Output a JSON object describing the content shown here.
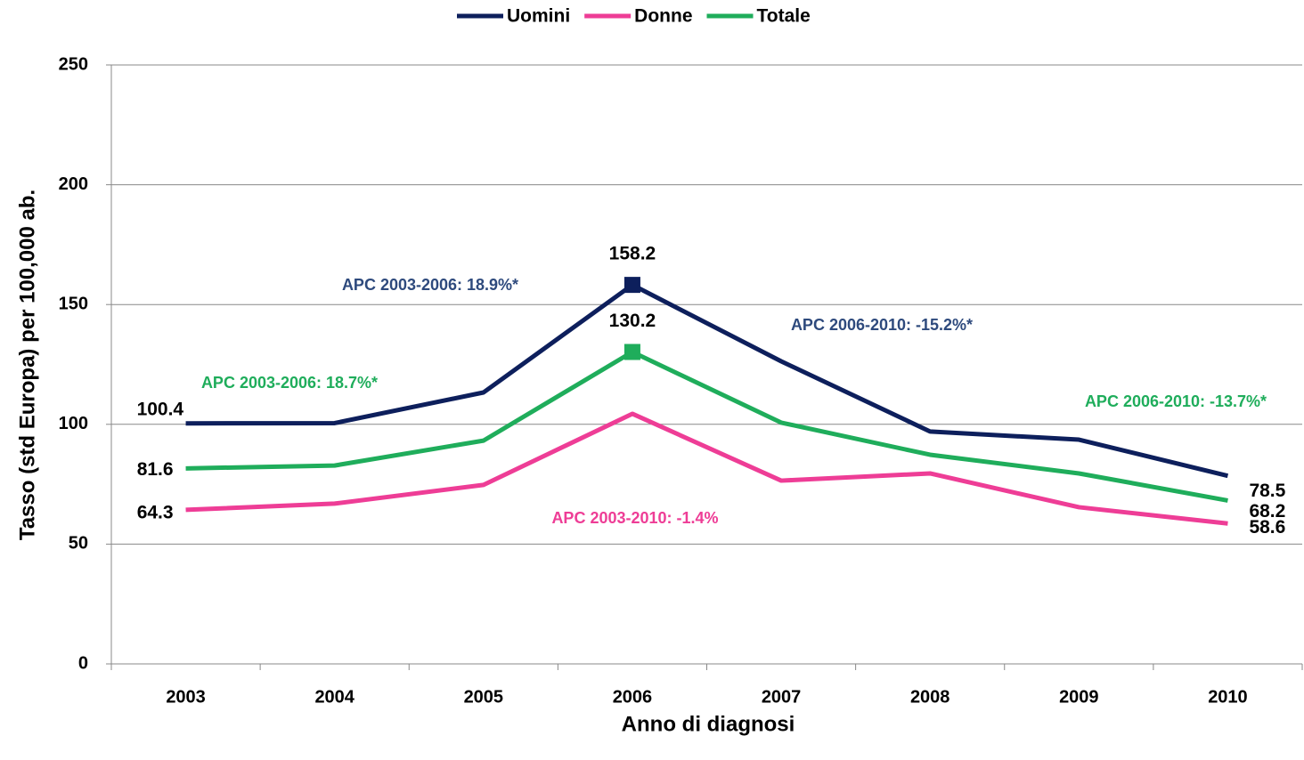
{
  "chart_data": {
    "type": "line",
    "x_label": "Anno di diagnosi",
    "y_label": "Tasso (std Europa) per 100,000 ab.",
    "categories": [
      "2003",
      "2004",
      "2005",
      "2006",
      "2007",
      "2008",
      "2009",
      "2010"
    ],
    "ylim": [
      0,
      250
    ],
    "yticks": [
      0,
      50,
      100,
      150,
      200,
      250
    ],
    "grid": true,
    "legend": "top",
    "series": [
      {
        "name": "Uomini",
        "color": "#0d1f5c",
        "values": [
          100.4,
          100.5,
          113.3,
          158.2,
          126.3,
          97,
          93.6,
          78.5
        ],
        "value_labels": [
          "100.4",
          null,
          null,
          "158.2",
          null,
          null,
          null,
          "78.5"
        ],
        "marker": "square",
        "marker_points": [
          3
        ]
      },
      {
        "name": "Donne",
        "color": "#ee3d96",
        "values": [
          64.3,
          66.9,
          74.7,
          104.4,
          76.5,
          79.5,
          65.4,
          58.6
        ],
        "value_labels": [
          "64.3",
          null,
          null,
          null,
          null,
          null,
          null,
          "58.6"
        ]
      },
      {
        "name": "Totale",
        "color": "#1fad5b",
        "values": [
          81.6,
          82.8,
          93.2,
          130.2,
          100.7,
          87.3,
          79.5,
          68.2
        ],
        "value_labels": [
          "81.6",
          null,
          null,
          "130.2",
          null,
          null,
          null,
          "68.2"
        ],
        "marker": "square",
        "marker_points": [
          3
        ]
      }
    ],
    "annotations": [
      {
        "text": "APC 2003-2006:  18.9%*",
        "color": "#2e4a7d"
      },
      {
        "text": "APC 2006-2010:  -15.2%*",
        "color": "#2e4a7d"
      },
      {
        "text": "APC 2003-2006:  18.7%*",
        "color": "#1fad5b"
      },
      {
        "text": "APC 2006-2010:  -13.7%*",
        "color": "#1fad5b"
      },
      {
        "text": "APC 2003-2010:  -1.4%",
        "color": "#ee3d96"
      }
    ]
  }
}
